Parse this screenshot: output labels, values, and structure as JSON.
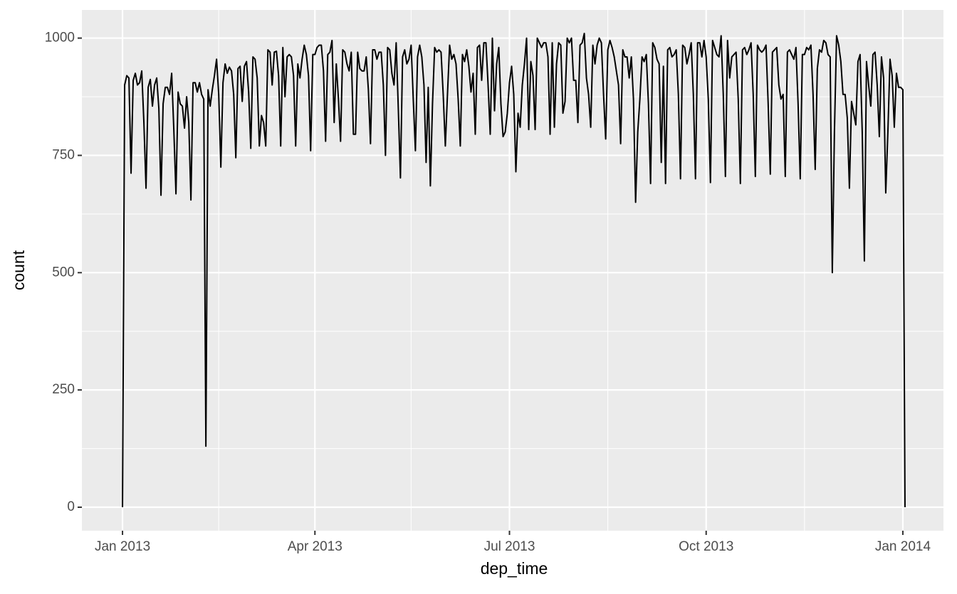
{
  "chart_data": {
    "type": "line",
    "xlabel": "dep_time",
    "ylabel": "count",
    "color": "#000000",
    "grid": true,
    "xlim": [
      -19,
      384
    ],
    "xticks": [
      {
        "value": 0,
        "label": "Jan 2013"
      },
      {
        "value": 90,
        "label": "Apr 2013"
      },
      {
        "value": 181,
        "label": "Jul 2013"
      },
      {
        "value": 273,
        "label": "Oct 2013"
      },
      {
        "value": 365,
        "label": "Jan 2014"
      }
    ],
    "x_minor_breaks": [
      45,
      135,
      227,
      319
    ],
    "ylim": [
      -50,
      1060
    ],
    "yticks": [
      0,
      250,
      500,
      750,
      1000
    ],
    "y_minor_breaks": [
      125,
      375,
      625,
      875
    ],
    "x": [
      0,
      1,
      2,
      3,
      4,
      5,
      6,
      7,
      8,
      9,
      10,
      11,
      12,
      13,
      14,
      15,
      16,
      17,
      18,
      19,
      20,
      21,
      22,
      23,
      24,
      25,
      26,
      27,
      28,
      29,
      30,
      31,
      32,
      33,
      34,
      35,
      36,
      37,
      38,
      39,
      40,
      41,
      42,
      43,
      44,
      45,
      46,
      47,
      48,
      49,
      50,
      51,
      52,
      53,
      54,
      55,
      56,
      57,
      58,
      59,
      60,
      61,
      62,
      63,
      64,
      65,
      66,
      67,
      68,
      69,
      70,
      71,
      72,
      73,
      74,
      75,
      76,
      77,
      78,
      79,
      80,
      81,
      82,
      83,
      84,
      85,
      86,
      87,
      88,
      89,
      90,
      91,
      92,
      93,
      94,
      95,
      96,
      97,
      98,
      99,
      100,
      101,
      102,
      103,
      104,
      105,
      106,
      107,
      108,
      109,
      110,
      111,
      112,
      113,
      114,
      115,
      116,
      117,
      118,
      119,
      120,
      121,
      122,
      123,
      124,
      125,
      126,
      127,
      128,
      129,
      130,
      131,
      132,
      133,
      134,
      135,
      136,
      137,
      138,
      139,
      140,
      141,
      142,
      143,
      144,
      145,
      146,
      147,
      148,
      149,
      150,
      151,
      152,
      153,
      154,
      155,
      156,
      157,
      158,
      159,
      160,
      161,
      162,
      163,
      164,
      165,
      166,
      167,
      168,
      169,
      170,
      171,
      172,
      173,
      174,
      175,
      176,
      177,
      178,
      179,
      180,
      181,
      182,
      183,
      184,
      185,
      186,
      187,
      188,
      189,
      190,
      191,
      192,
      193,
      194,
      195,
      196,
      197,
      198,
      199,
      200,
      201,
      202,
      203,
      204,
      205,
      206,
      207,
      208,
      209,
      210,
      211,
      212,
      213,
      214,
      215,
      216,
      217,
      218,
      219,
      220,
      221,
      222,
      223,
      224,
      225,
      226,
      227,
      228,
      229,
      230,
      231,
      232,
      233,
      234,
      235,
      236,
      237,
      238,
      239,
      240,
      241,
      242,
      243,
      244,
      245,
      246,
      247,
      248,
      249,
      250,
      251,
      252,
      253,
      254,
      255,
      256,
      257,
      258,
      259,
      260,
      261,
      262,
      263,
      264,
      265,
      266,
      267,
      268,
      269,
      270,
      271,
      272,
      273,
      274,
      275,
      276,
      277,
      278,
      279,
      280,
      281,
      282,
      283,
      284,
      285,
      286,
      287,
      288,
      289,
      290,
      291,
      292,
      293,
      294,
      295,
      296,
      297,
      298,
      299,
      300,
      301,
      302,
      303,
      304,
      305,
      306,
      307,
      308,
      309,
      310,
      311,
      312,
      313,
      314,
      315,
      316,
      317,
      318,
      319,
      320,
      321,
      322,
      323,
      324,
      325,
      326,
      327,
      328,
      329,
      330,
      331,
      332,
      333,
      334,
      335,
      336,
      337,
      338,
      339,
      340,
      341,
      342,
      343,
      344,
      345,
      346,
      347,
      348,
      349,
      350,
      351,
      352,
      353,
      354,
      355,
      356,
      357,
      358,
      359,
      360,
      361,
      362,
      363,
      364,
      365,
      366
    ],
    "values": [
      0,
      900,
      920,
      915,
      712,
      910,
      925,
      900,
      905,
      930,
      820,
      680,
      895,
      912,
      855,
      900,
      915,
      850,
      665,
      860,
      895,
      895,
      880,
      925,
      805,
      668,
      885,
      860,
      855,
      808,
      875,
      820,
      655,
      905,
      905,
      885,
      905,
      880,
      870,
      130,
      890,
      855,
      890,
      920,
      955,
      880,
      725,
      905,
      945,
      925,
      938,
      930,
      880,
      745,
      935,
      940,
      865,
      940,
      950,
      885,
      765,
      960,
      955,
      915,
      770,
      835,
      820,
      770,
      975,
      970,
      900,
      970,
      972,
      920,
      770,
      980,
      875,
      960,
      965,
      960,
      920,
      770,
      945,
      915,
      955,
      985,
      965,
      920,
      760,
      965,
      965,
      980,
      985,
      985,
      930,
      780,
      965,
      970,
      995,
      820,
      945,
      870,
      780,
      975,
      970,
      945,
      930,
      970,
      795,
      795,
      970,
      935,
      930,
      930,
      960,
      890,
      775,
      975,
      975,
      955,
      970,
      970,
      900,
      750,
      980,
      975,
      925,
      900,
      990,
      850,
      702,
      960,
      975,
      945,
      955,
      985,
      870,
      760,
      960,
      985,
      960,
      900,
      735,
      895,
      685,
      860,
      980,
      970,
      975,
      970,
      880,
      770,
      880,
      985,
      955,
      965,
      945,
      870,
      770,
      965,
      950,
      975,
      940,
      885,
      925,
      795,
      980,
      985,
      910,
      990,
      990,
      900,
      795,
      1000,
      845,
      945,
      980,
      860,
      790,
      800,
      840,
      905,
      940,
      880,
      715,
      840,
      810,
      900,
      945,
      1000,
      805,
      950,
      920,
      805,
      1000,
      990,
      980,
      990,
      990,
      960,
      795,
      990,
      810,
      945,
      990,
      985,
      840,
      865,
      1000,
      990,
      1000,
      910,
      910,
      820,
      985,
      990,
      1010,
      915,
      880,
      810,
      985,
      945,
      985,
      1000,
      990,
      880,
      785,
      975,
      995,
      980,
      960,
      930,
      900,
      775,
      975,
      960,
      960,
      915,
      960,
      870,
      650,
      800,
      870,
      960,
      950,
      965,
      860,
      690,
      990,
      980,
      955,
      945,
      735,
      940,
      690,
      975,
      980,
      960,
      965,
      975,
      880,
      700,
      985,
      980,
      945,
      965,
      990,
      880,
      700,
      990,
      990,
      960,
      995,
      960,
      870,
      692,
      995,
      980,
      965,
      960,
      1005,
      880,
      705,
      995,
      915,
      960,
      965,
      970,
      870,
      690,
      975,
      980,
      965,
      975,
      990,
      880,
      705,
      985,
      975,
      970,
      975,
      985,
      860,
      710,
      970,
      975,
      980,
      900,
      870,
      880,
      705,
      970,
      975,
      965,
      955,
      980,
      860,
      700,
      965,
      965,
      980,
      975,
      985,
      880,
      720,
      935,
      975,
      970,
      995,
      990,
      965,
      960,
      500,
      800,
      1005,
      985,
      950,
      880,
      880,
      830,
      680,
      865,
      840,
      815,
      950,
      965,
      800,
      525,
      950,
      900,
      855,
      965,
      970,
      900,
      790,
      960,
      915,
      670,
      800,
      955,
      920,
      810,
      925,
      895,
      895,
      890,
      0
    ]
  }
}
